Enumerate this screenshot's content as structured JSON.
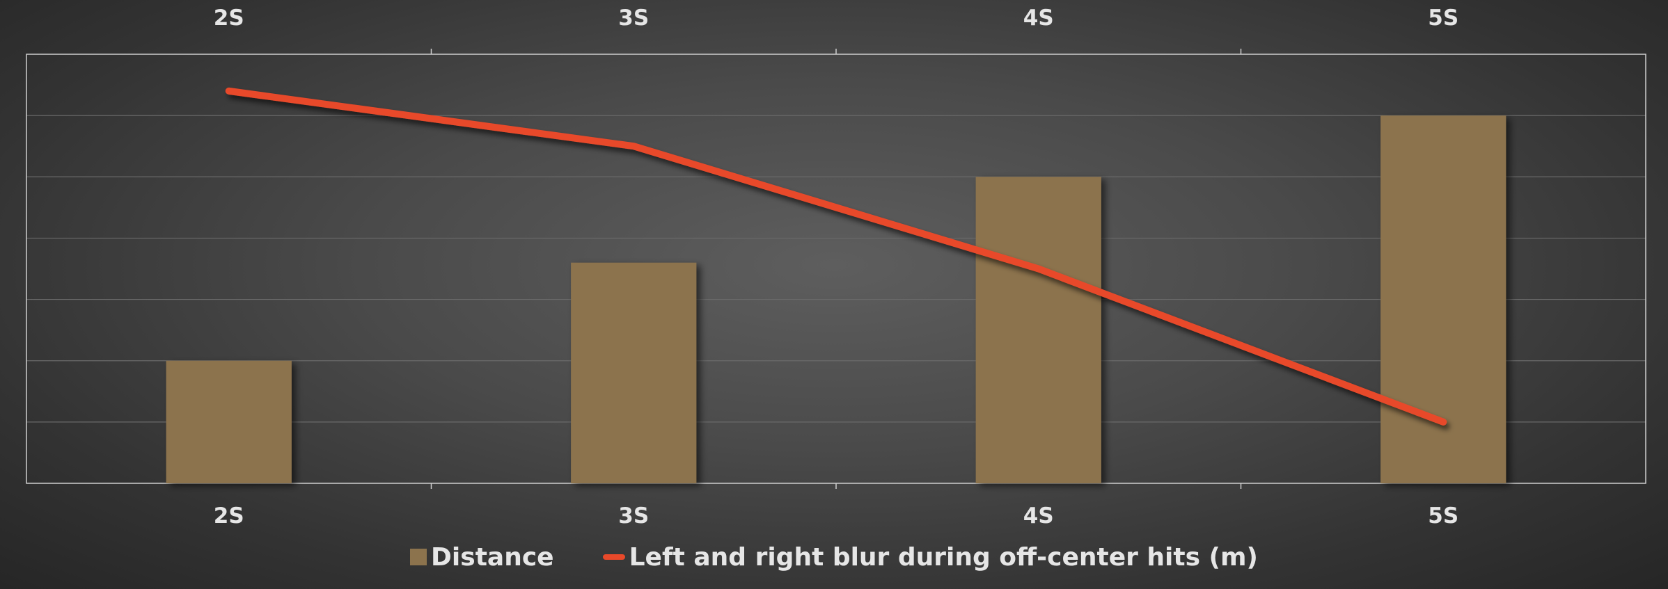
{
  "chart_data": {
    "type": "bar",
    "categories": [
      "2S",
      "3S",
      "4S",
      "5S"
    ],
    "series": [
      {
        "name": "Distance",
        "type": "bar",
        "values": [
          2,
          3.6,
          5,
          6
        ],
        "color": "#8c734d"
      },
      {
        "name": "Left and right blur during off-center hits (m)",
        "type": "line",
        "values": [
          6.4,
          5.5,
          3.5,
          1.0
        ],
        "color": "#e8492a"
      }
    ],
    "ylim": [
      0,
      7
    ],
    "gridlines": true,
    "y_tick_labels_shown": false,
    "x_tick_labels_top": true,
    "x_tick_labels_bottom": true,
    "legend_position": "bottom",
    "title": "",
    "xlabel": "",
    "ylabel": ""
  },
  "colors": {
    "grid": "#6a6a6a",
    "frame": "#cfcfcf",
    "text": "#e6e6e6"
  }
}
